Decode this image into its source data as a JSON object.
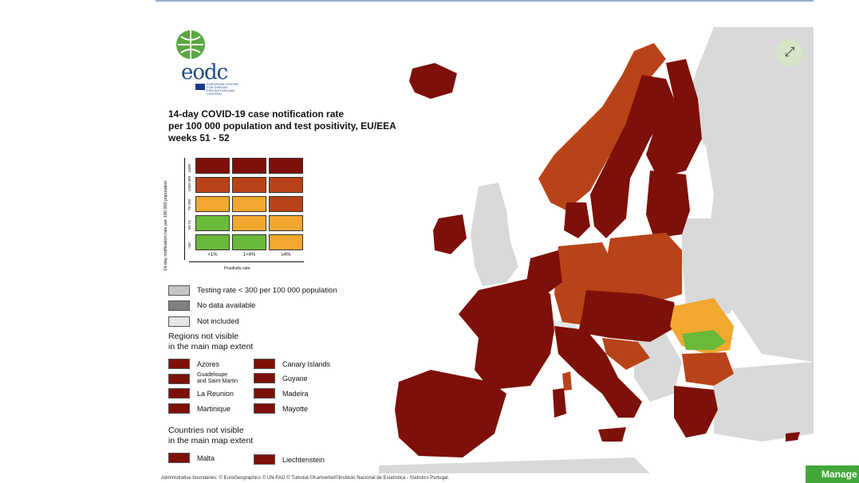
{
  "header": {
    "accent_color": "#8fb3d1"
  },
  "logo": {
    "text": "eodc",
    "subtitle": "EUROPEAN CENTRE FOR DISEASE PREVENTION AND CONTROL"
  },
  "map": {
    "title_lines": [
      "14-day COVID-19 case notification rate",
      "per 100 000 population and test positivity, EU/EEA",
      "weeks 51 - 52"
    ],
    "colors": {
      "dark_red": "#7d1008",
      "red_orange": "#b84318",
      "orange": "#f0a830",
      "green": "#6ab93a",
      "grey": "#c4c4c4",
      "dark_grey": "#808080",
      "light_grey": "#e6e6e6",
      "land_outside": "#d9d9d9",
      "sea": "#ffffff"
    },
    "matrix": {
      "y_axis_label": "14-day notification rate per 100 000 population",
      "x_axis_label": "Positivity rate",
      "x_ticks": [
        "<1%",
        "1<4%",
        "≥4%"
      ],
      "y_ticks": [
        "≥500",
        "≥200-499",
        "75-200",
        "50-74",
        "<50"
      ],
      "rows": [
        [
          "dark_red",
          "dark_red",
          "dark_red"
        ],
        [
          "red_orange",
          "red_orange",
          "red_orange"
        ],
        [
          "orange",
          "orange",
          "red_orange"
        ],
        [
          "green",
          "orange",
          "orange"
        ],
        [
          "green",
          "green",
          "orange"
        ]
      ]
    },
    "legend": {
      "testing_rate": "Testing rate < 300 per 100 000 population",
      "no_data": "No data available",
      "not_included": "Not included"
    },
    "regions_heading": [
      "Regions not visible",
      "in the main map extent"
    ],
    "regions": [
      {
        "label": "Azores"
      },
      {
        "label": "Canary Islands"
      },
      {
        "label": "Guadeloupe",
        "label2": "and Saint Martin"
      },
      {
        "label": "Guyane"
      },
      {
        "label": "La Reunion"
      },
      {
        "label": "Madeira"
      },
      {
        "label": "Martinique"
      },
      {
        "label": "Mayotte"
      }
    ],
    "countries_heading": [
      "Countries not visible",
      "in the main map extent"
    ],
    "countries": [
      {
        "label": "Malta"
      },
      {
        "label": "Liechtenstein"
      }
    ],
    "credits": "Administrative boundaries: © EuroGeographics © UN-FAO © Turkstat.©Kartverket©Instituto Nacional de Estatística - Statistics Portugal."
  },
  "controls": {
    "expand_icon": "expand-arrows-icon",
    "manage_label": "Manage"
  }
}
